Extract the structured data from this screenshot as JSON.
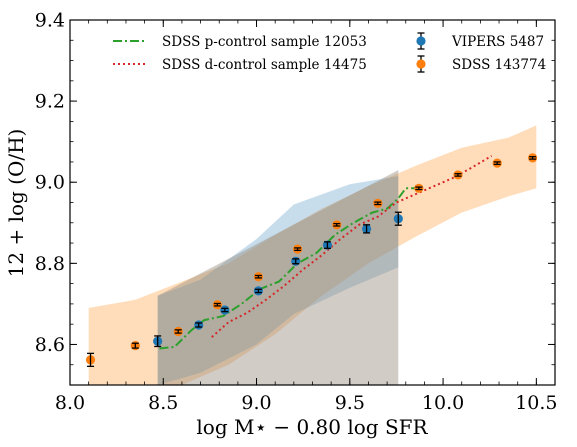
{
  "chart_data": {
    "type": "scatter",
    "xlabel": "log M⋆ − 0.80 log SFR",
    "ylabel": "12 + log (O/H)",
    "xlim": [
      8.0,
      10.6
    ],
    "ylim": [
      8.5,
      9.4
    ],
    "xticks": [
      "8.0",
      "8.5",
      "9.0",
      "9.5",
      "10.0",
      "10.5"
    ],
    "yticks": [
      "8.6",
      "8.8",
      "9.0",
      "9.2",
      "9.4"
    ],
    "grid": false,
    "legend_placement": "top",
    "series": [
      {
        "name": "VIPERS 5487",
        "kind": "errorbar",
        "color": "#1f77b4",
        "x": [
          8.47,
          8.69,
          8.83,
          9.01,
          9.21,
          9.38,
          9.59,
          9.76
        ],
        "y": [
          8.608,
          8.648,
          8.685,
          8.732,
          8.805,
          8.845,
          8.885,
          8.91
        ],
        "yerr": [
          0.013,
          0.005,
          0.004,
          0.004,
          0.006,
          0.008,
          0.01,
          0.016
        ]
      },
      {
        "name": "SDSS 143774",
        "kind": "errorbar",
        "color": "#ff7f0e",
        "x": [
          8.11,
          8.35,
          8.58,
          8.79,
          9.01,
          9.22,
          9.43,
          9.65,
          9.87,
          10.08,
          10.29,
          10.48
        ],
        "y": [
          8.562,
          8.597,
          8.632,
          8.698,
          8.767,
          8.835,
          8.895,
          8.948,
          8.985,
          9.018,
          9.047,
          9.06
        ],
        "yerr": [
          0.016,
          0.006,
          0.004,
          0.003,
          0.003,
          0.003,
          0.003,
          0.003,
          0.003,
          0.003,
          0.003,
          0.003
        ]
      },
      {
        "name": "SDSS p-control sample 12053",
        "kind": "line",
        "style": "dashdot",
        "color": "#2ca02c",
        "x": [
          8.48,
          8.56,
          8.65,
          8.72,
          8.82,
          8.92,
          9.02,
          9.12,
          9.22,
          9.32,
          9.42,
          9.52,
          9.62,
          9.7,
          9.76,
          9.8,
          9.87
        ],
        "y": [
          8.59,
          8.594,
          8.635,
          8.66,
          8.67,
          8.7,
          8.737,
          8.755,
          8.8,
          8.825,
          8.87,
          8.9,
          8.925,
          8.935,
          8.96,
          8.985,
          8.985
        ]
      },
      {
        "name": "SDSS d-control sample 14475",
        "kind": "line",
        "style": "dotted",
        "color": "#d62728",
        "x": [
          8.76,
          8.85,
          8.95,
          9.05,
          9.15,
          9.25,
          9.35,
          9.45,
          9.55,
          9.65,
          9.75,
          9.85,
          9.95,
          10.05,
          10.15,
          10.26
        ],
        "y": [
          8.618,
          8.655,
          8.678,
          8.71,
          8.745,
          8.785,
          8.82,
          8.86,
          8.895,
          8.915,
          8.95,
          8.97,
          8.99,
          9.01,
          9.035,
          9.065
        ]
      }
    ],
    "bands": [
      {
        "color": "#ffbb78",
        "opacity": 0.5,
        "x": [
          8.1,
          8.35,
          8.6,
          8.85,
          9.1,
          9.35,
          9.6,
          9.85,
          10.1,
          10.35,
          10.5
        ],
        "upper": [
          8.69,
          8.71,
          8.755,
          8.8,
          8.87,
          8.935,
          8.99,
          9.04,
          9.085,
          9.11,
          9.14
        ],
        "lower": [
          8.5,
          8.5,
          8.5,
          8.55,
          8.625,
          8.72,
          8.8,
          8.865,
          8.925,
          8.965,
          8.985
        ]
      },
      {
        "color": "#1f77b4",
        "opacity": 0.25,
        "x": [
          8.47,
          8.7,
          9.0,
          9.2,
          9.5,
          9.76
        ],
        "upper": [
          8.72,
          8.76,
          8.86,
          8.945,
          8.995,
          9.015
        ],
        "lower": [
          8.5,
          8.53,
          8.6,
          8.675,
          8.74,
          8.79
        ]
      },
      {
        "color": "#9a8f80",
        "opacity": 0.45,
        "x": [
          8.47,
          9.76
        ],
        "upper": [
          8.72,
          9.03
        ],
        "lower": [
          8.5,
          8.5
        ]
      }
    ],
    "legend": {
      "left": [
        "SDSS p-control sample 12053",
        "SDSS d-control sample 14475"
      ],
      "right": [
        "VIPERS 5487",
        "SDSS 143774"
      ]
    }
  }
}
